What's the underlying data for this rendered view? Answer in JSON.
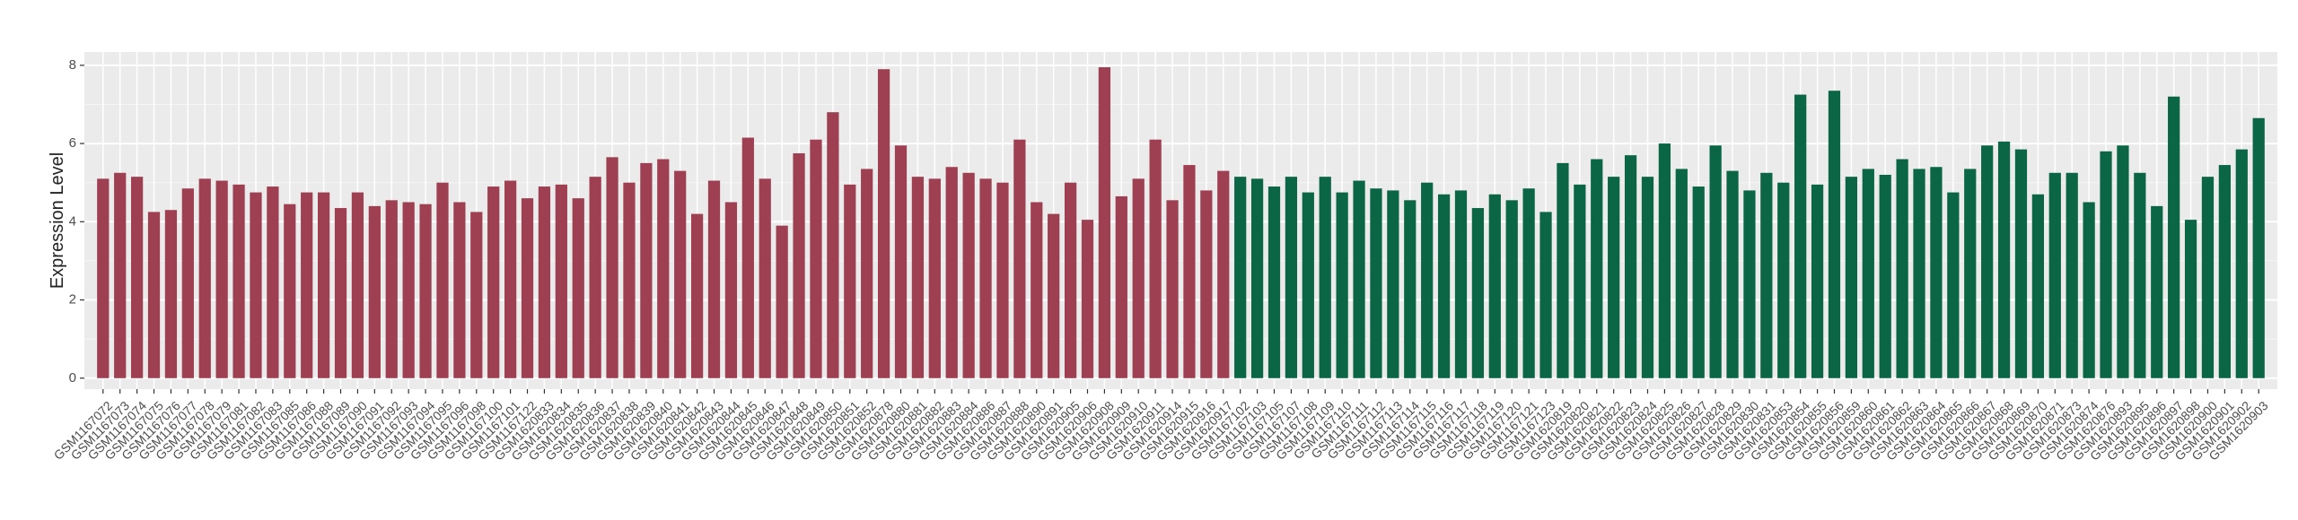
{
  "chart_data": {
    "type": "bar",
    "y_label": "Expression Level",
    "ylim": [
      -0.28,
      8.34
    ],
    "yticks": [
      0,
      2,
      4,
      6,
      8
    ],
    "grid": true,
    "series": [
      {
        "color": "#9e3f52",
        "categories": [
          "GSM1167072",
          "GSM1167073",
          "GSM1167074",
          "GSM1167075",
          "GSM1167076",
          "GSM1167077",
          "GSM1167078",
          "GSM1167079",
          "GSM1167081",
          "GSM1167082",
          "GSM1167083",
          "GSM1167085",
          "GSM1167086",
          "GSM1167088",
          "GSM1167089",
          "GSM1167090",
          "GSM1167091",
          "GSM1167092",
          "GSM1167093",
          "GSM1167094",
          "GSM1167095",
          "GSM1167096",
          "GSM1167098",
          "GSM1167100",
          "GSM1167101",
          "GSM1167122",
          "GSM1620833",
          "GSM1620834",
          "GSM1620835",
          "GSM1620836",
          "GSM1620837",
          "GSM1620838",
          "GSM1620839",
          "GSM1620840",
          "GSM1620841",
          "GSM1620842",
          "GSM1620843",
          "GSM1620844",
          "GSM1620845",
          "GSM1620846",
          "GSM1620847",
          "GSM1620848",
          "GSM1620849",
          "GSM1620850",
          "GSM1620851",
          "GSM1620852",
          "GSM1620878",
          "GSM1620880",
          "GSM1620881",
          "GSM1620882",
          "GSM1620883",
          "GSM1620884",
          "GSM1620886",
          "GSM1620887",
          "GSM1620888",
          "GSM1620890",
          "GSM1620891",
          "GSM1620905",
          "GSM1620906",
          "GSM1620908",
          "GSM1620909",
          "GSM1620910",
          "GSM1620911",
          "GSM1620914",
          "GSM1620915",
          "GSM1620916",
          "GSM1620917"
        ],
        "values": [
          5.1,
          5.25,
          5.15,
          4.25,
          4.3,
          4.85,
          5.1,
          5.05,
          4.95,
          4.75,
          4.9,
          4.45,
          4.75,
          4.75,
          4.35,
          4.75,
          4.4,
          4.55,
          4.5,
          4.45,
          5.0,
          4.5,
          4.25,
          4.9,
          5.05,
          4.6,
          4.9,
          4.95,
          4.6,
          5.15,
          5.65,
          5.0,
          5.5,
          5.6,
          5.3,
          4.2,
          5.05,
          4.5,
          6.15,
          5.1,
          3.9,
          5.75,
          6.1,
          6.8,
          4.95,
          5.35,
          7.9,
          5.95,
          5.15,
          5.1,
          5.4,
          5.25,
          5.1,
          5.0,
          6.1,
          4.5,
          4.2,
          5.0,
          4.05,
          7.95,
          4.65,
          5.1,
          6.1,
          4.55,
          5.45,
          4.8,
          5.3
        ]
      },
      {
        "color": "#0a6644",
        "categories": [
          "GSM1167102",
          "GSM1167103",
          "GSM1167105",
          "GSM1167107",
          "GSM1167108",
          "GSM1167109",
          "GSM1167110",
          "GSM1167111",
          "GSM1167112",
          "GSM1167113",
          "GSM1167114",
          "GSM1167115",
          "GSM1167116",
          "GSM1167117",
          "GSM1167118",
          "GSM1167119",
          "GSM1167120",
          "GSM1167121",
          "GSM1167123",
          "GSM1620819",
          "GSM1620820",
          "GSM1620821",
          "GSM1620822",
          "GSM1620823",
          "GSM1620824",
          "GSM1620825",
          "GSM1620826",
          "GSM1620827",
          "GSM1620828",
          "GSM1620829",
          "GSM1620830",
          "GSM1620831",
          "GSM1620853",
          "GSM1620854",
          "GSM1620855",
          "GSM1620856",
          "GSM1620859",
          "GSM1620860",
          "GSM1620861",
          "GSM1620862",
          "GSM1620863",
          "GSM1620864",
          "GSM1620865",
          "GSM1620866",
          "GSM1620867",
          "GSM1620868",
          "GSM1620869",
          "GSM1620870",
          "GSM1620871",
          "GSM1620873",
          "GSM1620874",
          "GSM1620876",
          "GSM1620893",
          "GSM1620895",
          "GSM1620896",
          "GSM1620897",
          "GSM1620898",
          "GSM1620900",
          "GSM1620901",
          "GSM1620902",
          "GSM1620903"
        ],
        "values": [
          5.15,
          5.1,
          4.9,
          5.15,
          4.75,
          5.15,
          4.75,
          5.05,
          4.85,
          4.8,
          4.55,
          5.0,
          4.7,
          4.8,
          4.35,
          4.7,
          4.55,
          4.85,
          4.25,
          5.5,
          4.95,
          5.6,
          5.15,
          5.7,
          5.15,
          6.0,
          5.35,
          4.9,
          5.95,
          5.3,
          4.8,
          5.25,
          5.0,
          7.25,
          4.95,
          7.35,
          5.15,
          5.35,
          5.2,
          5.6,
          5.35,
          5.4,
          4.75,
          5.35,
          5.95,
          6.05,
          5.85,
          4.7,
          5.25,
          5.25,
          4.5,
          5.8,
          5.95,
          5.25,
          4.4,
          7.2,
          4.05,
          5.15,
          5.45,
          5.85,
          6.65
        ]
      }
    ]
  }
}
